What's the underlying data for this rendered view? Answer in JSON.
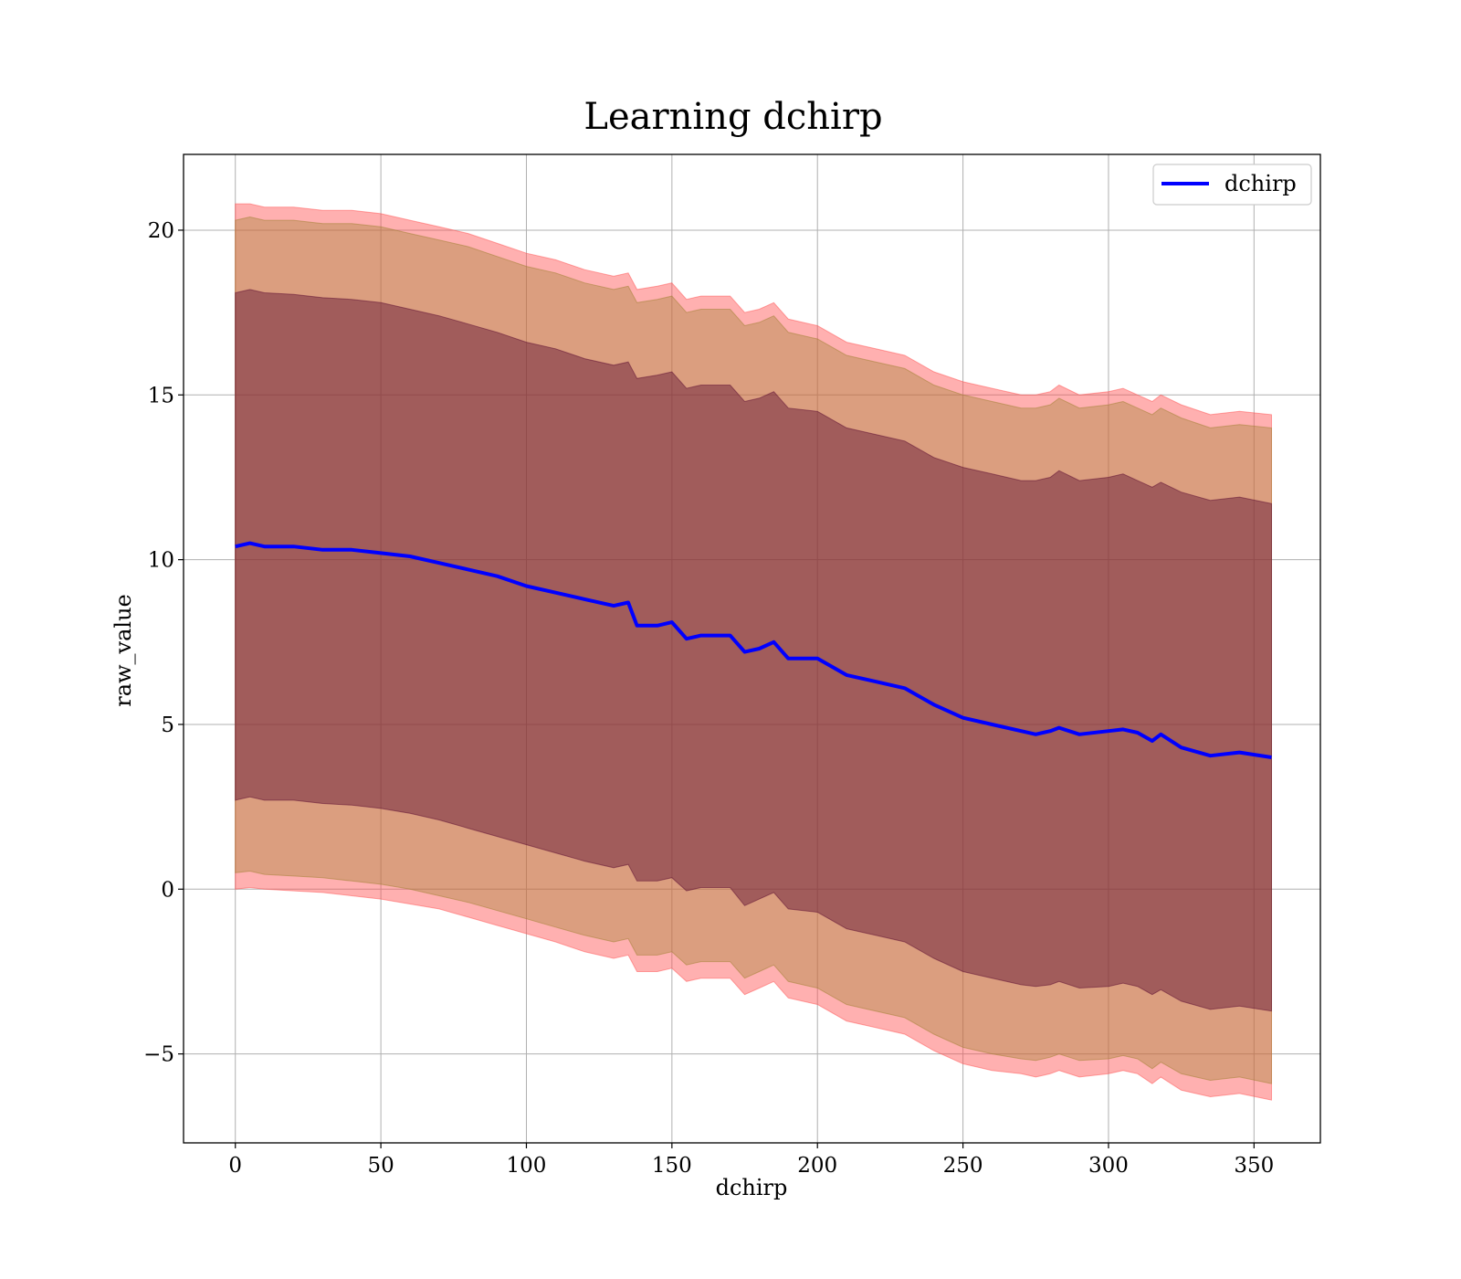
{
  "chart_data": {
    "type": "line",
    "title": "Learning dchirp",
    "xlabel": "dchirp",
    "ylabel": "raw_value",
    "xlim": [
      -17.8,
      372.8
    ],
    "ylim": [
      -7.7,
      22.3
    ],
    "xticks": [
      0,
      50,
      100,
      150,
      200,
      250,
      300,
      350
    ],
    "xtick_labels": [
      "0",
      "50",
      "100",
      "150",
      "200",
      "250",
      "300",
      "350"
    ],
    "yticks": [
      -5,
      0,
      5,
      10,
      15,
      20
    ],
    "ytick_labels": [
      "−5",
      "0",
      "5",
      "10",
      "15",
      "20"
    ],
    "grid": true,
    "legend": {
      "position": "top-right",
      "entries": [
        "dchirp"
      ]
    },
    "colors": {
      "line": "#0000ff",
      "outer_band": "#ff5050",
      "middle_band": "#a08030",
      "inner_band": "#5a0a30",
      "grid": "#b0b0b0"
    },
    "x": [
      0,
      5,
      10,
      20,
      30,
      40,
      50,
      60,
      70,
      80,
      90,
      100,
      110,
      120,
      130,
      135,
      138,
      145,
      150,
      155,
      160,
      170,
      175,
      180,
      185,
      190,
      200,
      210,
      220,
      230,
      240,
      250,
      260,
      270,
      275,
      280,
      283,
      290,
      300,
      305,
      310,
      315,
      318,
      325,
      335,
      345,
      356
    ],
    "series": [
      {
        "name": "dchirp",
        "values": [
          10.4,
          10.5,
          10.4,
          10.4,
          10.3,
          10.3,
          10.2,
          10.1,
          9.9,
          9.7,
          9.5,
          9.2,
          9.0,
          8.8,
          8.6,
          8.7,
          8.0,
          8.0,
          8.1,
          7.6,
          7.7,
          7.7,
          7.2,
          7.3,
          7.5,
          7.0,
          7.0,
          6.5,
          6.3,
          6.1,
          5.6,
          5.2,
          5.0,
          4.8,
          4.7,
          4.8,
          4.9,
          4.7,
          4.8,
          4.85,
          4.75,
          4.5,
          4.7,
          4.3,
          4.05,
          4.15,
          4.0
        ]
      }
    ],
    "bands": [
      {
        "upper": [
          20.8,
          20.8,
          20.7,
          20.7,
          20.6,
          20.6,
          20.5,
          20.3,
          20.1,
          19.9,
          19.6,
          19.3,
          19.1,
          18.8,
          18.6,
          18.7,
          18.2,
          18.3,
          18.4,
          17.9,
          18.0,
          18.0,
          17.5,
          17.6,
          17.8,
          17.3,
          17.1,
          16.6,
          16.4,
          16.2,
          15.7,
          15.4,
          15.2,
          15.0,
          15.0,
          15.1,
          15.3,
          15.0,
          15.1,
          15.2,
          15.0,
          14.8,
          15.0,
          14.7,
          14.4,
          14.5,
          14.4
        ],
        "lower": [
          0.0,
          0.05,
          0.0,
          -0.05,
          -0.1,
          -0.2,
          -0.3,
          -0.45,
          -0.6,
          -0.85,
          -1.1,
          -1.35,
          -1.6,
          -1.9,
          -2.1,
          -2.0,
          -2.5,
          -2.5,
          -2.4,
          -2.8,
          -2.7,
          -2.7,
          -3.2,
          -3.0,
          -2.8,
          -3.3,
          -3.5,
          -4.0,
          -4.2,
          -4.4,
          -4.9,
          -5.3,
          -5.5,
          -5.6,
          -5.7,
          -5.6,
          -5.5,
          -5.7,
          -5.6,
          -5.5,
          -5.6,
          -5.9,
          -5.7,
          -6.1,
          -6.3,
          -6.2,
          -6.4
        ]
      },
      {
        "upper": [
          20.3,
          20.4,
          20.3,
          20.3,
          20.2,
          20.2,
          20.1,
          19.9,
          19.7,
          19.5,
          19.2,
          18.9,
          18.7,
          18.4,
          18.2,
          18.3,
          17.8,
          17.9,
          18.0,
          17.5,
          17.6,
          17.6,
          17.1,
          17.2,
          17.4,
          16.9,
          16.7,
          16.2,
          16.0,
          15.8,
          15.3,
          15.0,
          14.8,
          14.6,
          14.6,
          14.7,
          14.9,
          14.6,
          14.7,
          14.8,
          14.6,
          14.4,
          14.6,
          14.3,
          14.0,
          14.1,
          14.0
        ],
        "lower": [
          0.5,
          0.55,
          0.45,
          0.4,
          0.35,
          0.25,
          0.15,
          0.0,
          -0.2,
          -0.4,
          -0.65,
          -0.9,
          -1.15,
          -1.4,
          -1.6,
          -1.5,
          -2.0,
          -2.0,
          -1.9,
          -2.3,
          -2.2,
          -2.2,
          -2.7,
          -2.5,
          -2.3,
          -2.8,
          -3.0,
          -3.5,
          -3.7,
          -3.9,
          -4.4,
          -4.8,
          -5.0,
          -5.15,
          -5.2,
          -5.1,
          -5.0,
          -5.2,
          -5.15,
          -5.05,
          -5.15,
          -5.45,
          -5.25,
          -5.6,
          -5.8,
          -5.7,
          -5.9
        ]
      },
      {
        "upper": [
          18.1,
          18.2,
          18.1,
          18.05,
          17.95,
          17.9,
          17.8,
          17.6,
          17.4,
          17.15,
          16.9,
          16.6,
          16.4,
          16.1,
          15.9,
          16.0,
          15.5,
          15.6,
          15.7,
          15.2,
          15.3,
          15.3,
          14.8,
          14.9,
          15.1,
          14.6,
          14.5,
          14.0,
          13.8,
          13.6,
          13.1,
          12.8,
          12.6,
          12.4,
          12.4,
          12.5,
          12.7,
          12.4,
          12.5,
          12.6,
          12.4,
          12.2,
          12.35,
          12.05,
          11.8,
          11.9,
          11.7
        ],
        "lower": [
          2.7,
          2.8,
          2.7,
          2.7,
          2.6,
          2.55,
          2.45,
          2.3,
          2.1,
          1.85,
          1.6,
          1.35,
          1.1,
          0.85,
          0.65,
          0.75,
          0.25,
          0.25,
          0.35,
          -0.05,
          0.05,
          0.05,
          -0.5,
          -0.3,
          -0.1,
          -0.6,
          -0.7,
          -1.2,
          -1.4,
          -1.6,
          -2.1,
          -2.5,
          -2.7,
          -2.9,
          -2.95,
          -2.9,
          -2.8,
          -3.0,
          -2.95,
          -2.85,
          -2.95,
          -3.2,
          -3.05,
          -3.4,
          -3.65,
          -3.55,
          -3.7
        ]
      }
    ]
  }
}
